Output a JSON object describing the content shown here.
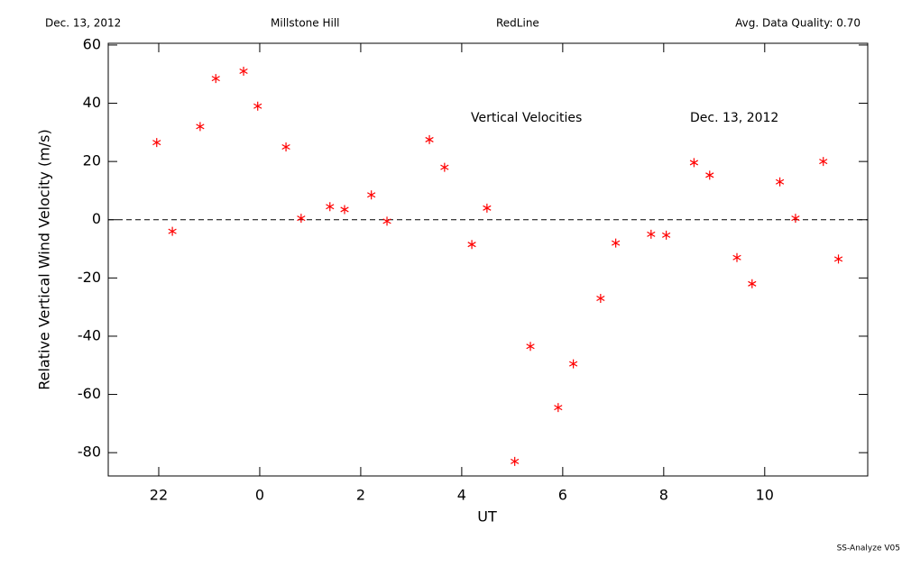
{
  "header": {
    "date": "Dec. 13, 2012",
    "site": "Millstone Hill",
    "emission": "RedLine",
    "quality": "Avg. Data Quality: 0.70"
  },
  "footer": "SS-Analyze V05",
  "chart_data": {
    "type": "scatter",
    "annotations": [
      "Vertical Velocities",
      "Dec. 13, 2012"
    ],
    "x_label": "UT",
    "y_label": "Relative Vertical Wind Velocity (m/s)",
    "x": [
      21.96,
      22.27,
      22.82,
      23.13,
      23.68,
      23.96,
      24.52,
      24.82,
      25.39,
      25.68,
      26.21,
      26.52,
      27.36,
      27.66,
      28.2,
      28.5,
      29.05,
      29.36,
      29.91,
      30.21,
      30.75,
      31.05,
      31.75,
      32.05,
      32.6,
      32.91,
      33.45,
      33.75,
      34.3,
      34.61,
      35.16,
      35.46
    ],
    "series": [
      {
        "name": "Vertical Velocities",
        "color": "#ff0000",
        "values": [
          26.5,
          -4,
          32,
          48.5,
          51,
          39,
          25,
          0.5,
          4.5,
          3.5,
          8.5,
          -0.5,
          27.5,
          18,
          -8.5,
          4,
          -83,
          -43.5,
          -64.5,
          -49.5,
          -27,
          -8,
          -5,
          -5.3,
          19.6,
          15.3,
          -13,
          -22,
          13,
          0.5,
          20,
          -13.5
        ]
      }
    ],
    "hline": 0,
    "xlim": [
      21,
      36.04
    ],
    "ylim": [
      -88,
      60.6
    ],
    "xticks": [
      22,
      {
        "value": 24,
        "label": "0"
      },
      {
        "value": 26,
        "label": "2"
      },
      {
        "value": 28,
        "label": "4"
      },
      {
        "value": 30,
        "label": "6"
      },
      {
        "value": 32,
        "label": "8"
      },
      {
        "value": 34,
        "label": "10"
      }
    ],
    "yticks": [
      -80,
      -60,
      -40,
      -20,
      0,
      20,
      40,
      60
    ]
  }
}
